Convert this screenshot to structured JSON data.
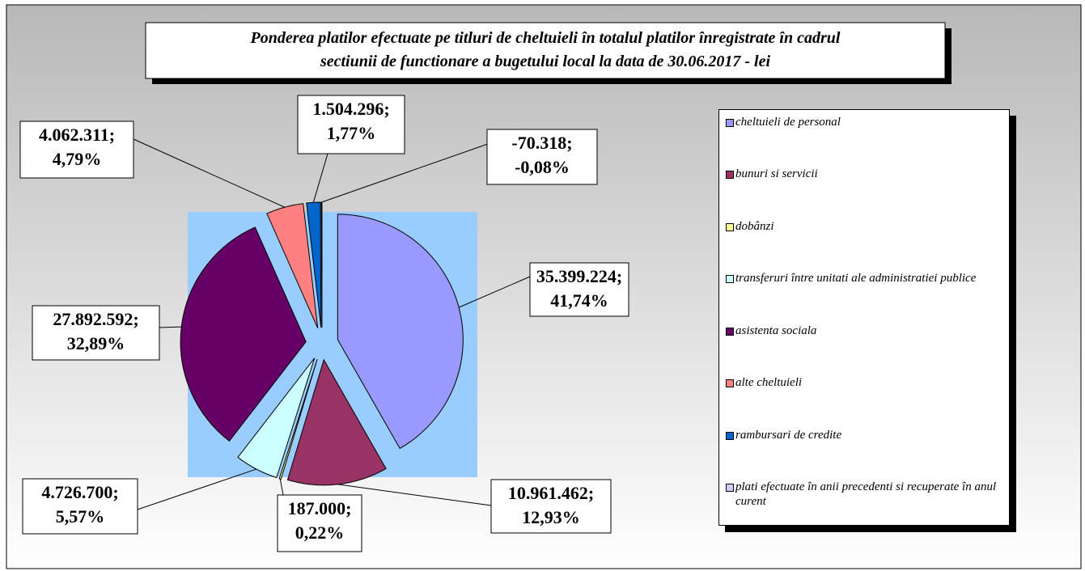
{
  "chart_data": {
    "type": "pie",
    "title": [
      "Ponderea platilor efectuate pe titluri de cheltuieli în totalul platilor înregistrate în cadrul",
      "sectiunii de functionare a bugetului local la data de 30.06.2017 - lei"
    ],
    "categories": [
      "cheltuieli de personal",
      "bunuri si servicii",
      "dobânzi",
      "transferuri între unitati ale administratiei publice",
      "asistenta sociala",
      "alte cheltuieli",
      "rambursari de credite",
      "plati efectuate în anii precedenti si recuperate în anul curent"
    ],
    "values": [
      35399224,
      10961462,
      187000,
      4726700,
      27892592,
      4062311,
      1504296,
      -70318
    ],
    "value_labels": [
      "35.399.224;",
      "10.961.462;",
      "187.000;",
      "4.726.700;",
      "27.892.592;",
      "4.062.311;",
      "1.504.296;",
      "-70.318;"
    ],
    "percents": [
      41.74,
      12.93,
      0.22,
      5.57,
      32.89,
      4.79,
      1.77,
      -0.08
    ],
    "percent_labels": [
      "41,74%",
      "12,93%",
      "0,22%",
      "5,57%",
      "32,89%",
      "4,79%",
      "1,77%",
      "-0,08%"
    ],
    "colors": [
      "#9999ff",
      "#993366",
      "#ffff99",
      "#ccffff",
      "#660066",
      "#ff8080",
      "#0066cc",
      "#ccccff"
    ],
    "legend": "right"
  }
}
